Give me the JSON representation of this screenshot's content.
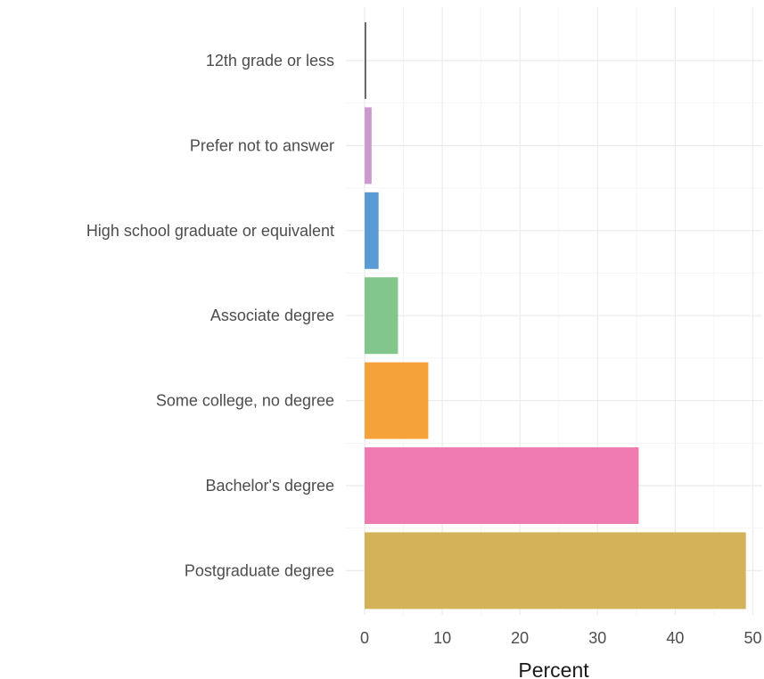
{
  "chart_data": {
    "type": "bar",
    "orientation": "horizontal",
    "categories": [
      "12th grade or less",
      "Prefer not to answer",
      "High school graduate or equivalent",
      "Associate degree",
      "Some college, no degree",
      "Bachelor's degree",
      "Postgraduate degree"
    ],
    "values": [
      0.2,
      0.9,
      1.8,
      4.3,
      8.2,
      35.3,
      49.1
    ],
    "colors": [
      "#555555",
      "#CC9ACD",
      "#5A9BD5",
      "#83C68C",
      "#F5A23A",
      "#EF7BB0",
      "#D3B25A"
    ],
    "title": "",
    "xlabel": "Percent",
    "ylabel": "",
    "xlim": [
      0,
      50
    ],
    "xticks": [
      0,
      10,
      20,
      30,
      40,
      50
    ],
    "grid": true,
    "legend": "none"
  }
}
